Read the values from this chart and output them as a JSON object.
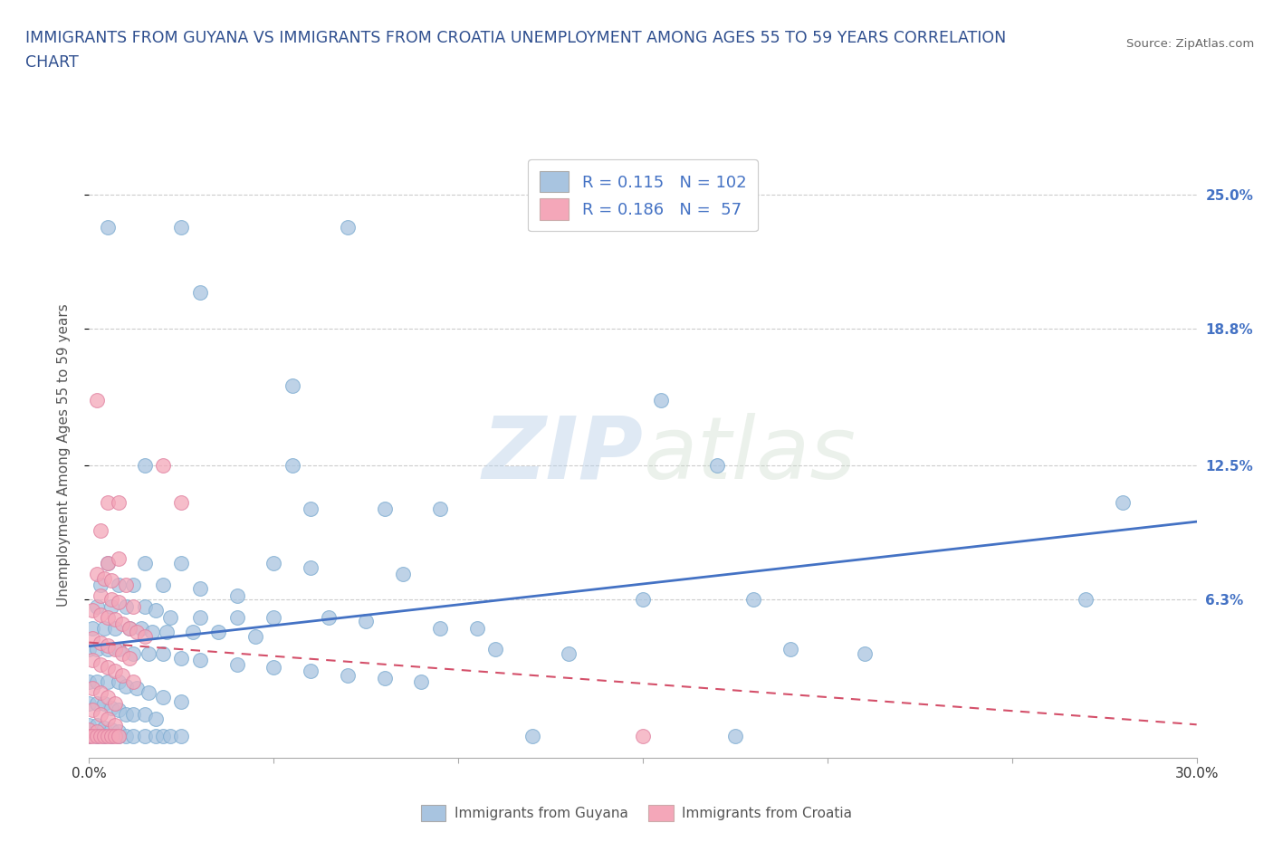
{
  "title_line1": "IMMIGRANTS FROM GUYANA VS IMMIGRANTS FROM CROATIA UNEMPLOYMENT AMONG AGES 55 TO 59 YEARS CORRELATION",
  "title_line2": "CHART",
  "source": "Source: ZipAtlas.com",
  "ylabel": "Unemployment Among Ages 55 to 59 years",
  "xlim": [
    0.0,
    0.3
  ],
  "ylim": [
    -0.01,
    0.27
  ],
  "ytick_labels_right": [
    "6.3%",
    "12.5%",
    "18.8%",
    "25.0%"
  ],
  "ytick_vals_right": [
    0.063,
    0.125,
    0.188,
    0.25
  ],
  "watermark": "ZIPatlas",
  "legend_R1": "0.115",
  "legend_N1": "102",
  "legend_R2": "0.186",
  "legend_N2": " 57",
  "guyana_color": "#a8c4e0",
  "croatia_color": "#f4a7b9",
  "guyana_line_color": "#4472c4",
  "croatia_line_color": "#d4506a",
  "guyana_scatter": [
    [
      0.005,
      0.235
    ],
    [
      0.025,
      0.235
    ],
    [
      0.07,
      0.235
    ],
    [
      0.03,
      0.205
    ],
    [
      0.055,
      0.162
    ],
    [
      0.155,
      0.155
    ],
    [
      0.015,
      0.125
    ],
    [
      0.055,
      0.125
    ],
    [
      0.06,
      0.105
    ],
    [
      0.08,
      0.105
    ],
    [
      0.095,
      0.105
    ],
    [
      0.005,
      0.08
    ],
    [
      0.015,
      0.08
    ],
    [
      0.025,
      0.08
    ],
    [
      0.05,
      0.08
    ],
    [
      0.06,
      0.078
    ],
    [
      0.085,
      0.075
    ],
    [
      0.003,
      0.07
    ],
    [
      0.008,
      0.07
    ],
    [
      0.012,
      0.07
    ],
    [
      0.02,
      0.07
    ],
    [
      0.03,
      0.068
    ],
    [
      0.04,
      0.065
    ],
    [
      0.002,
      0.06
    ],
    [
      0.006,
      0.06
    ],
    [
      0.01,
      0.06
    ],
    [
      0.015,
      0.06
    ],
    [
      0.018,
      0.058
    ],
    [
      0.022,
      0.055
    ],
    [
      0.03,
      0.055
    ],
    [
      0.04,
      0.055
    ],
    [
      0.05,
      0.055
    ],
    [
      0.065,
      0.055
    ],
    [
      0.075,
      0.053
    ],
    [
      0.001,
      0.05
    ],
    [
      0.004,
      0.05
    ],
    [
      0.007,
      0.05
    ],
    [
      0.011,
      0.05
    ],
    [
      0.014,
      0.05
    ],
    [
      0.017,
      0.048
    ],
    [
      0.021,
      0.048
    ],
    [
      0.028,
      0.048
    ],
    [
      0.035,
      0.048
    ],
    [
      0.045,
      0.046
    ],
    [
      0.0,
      0.04
    ],
    [
      0.002,
      0.04
    ],
    [
      0.005,
      0.04
    ],
    [
      0.008,
      0.04
    ],
    [
      0.012,
      0.038
    ],
    [
      0.016,
      0.038
    ],
    [
      0.02,
      0.038
    ],
    [
      0.025,
      0.036
    ],
    [
      0.03,
      0.035
    ],
    [
      0.04,
      0.033
    ],
    [
      0.05,
      0.032
    ],
    [
      0.06,
      0.03
    ],
    [
      0.07,
      0.028
    ],
    [
      0.08,
      0.027
    ],
    [
      0.09,
      0.025
    ],
    [
      0.0,
      0.025
    ],
    [
      0.002,
      0.025
    ],
    [
      0.005,
      0.025
    ],
    [
      0.008,
      0.025
    ],
    [
      0.01,
      0.023
    ],
    [
      0.013,
      0.022
    ],
    [
      0.016,
      0.02
    ],
    [
      0.02,
      0.018
    ],
    [
      0.025,
      0.016
    ],
    [
      0.0,
      0.015
    ],
    [
      0.002,
      0.015
    ],
    [
      0.004,
      0.015
    ],
    [
      0.006,
      0.013
    ],
    [
      0.008,
      0.012
    ],
    [
      0.01,
      0.01
    ],
    [
      0.012,
      0.01
    ],
    [
      0.015,
      0.01
    ],
    [
      0.018,
      0.008
    ],
    [
      0.0,
      0.005
    ],
    [
      0.002,
      0.005
    ],
    [
      0.004,
      0.004
    ],
    [
      0.006,
      0.003
    ],
    [
      0.008,
      0.002
    ],
    [
      0.0,
      0.0
    ],
    [
      0.002,
      0.0
    ],
    [
      0.004,
      0.0
    ],
    [
      0.006,
      0.0
    ],
    [
      0.008,
      0.0
    ],
    [
      0.01,
      0.0
    ],
    [
      0.012,
      0.0
    ],
    [
      0.015,
      0.0
    ],
    [
      0.018,
      0.0
    ],
    [
      0.02,
      0.0
    ],
    [
      0.022,
      0.0
    ],
    [
      0.025,
      0.0
    ],
    [
      0.12,
      0.0
    ],
    [
      0.175,
      0.0
    ],
    [
      0.28,
      0.108
    ],
    [
      0.27,
      0.063
    ],
    [
      0.17,
      0.125
    ],
    [
      0.15,
      0.063
    ],
    [
      0.18,
      0.063
    ],
    [
      0.11,
      0.04
    ],
    [
      0.13,
      0.038
    ],
    [
      0.095,
      0.05
    ],
    [
      0.105,
      0.05
    ],
    [
      0.19,
      0.04
    ],
    [
      0.21,
      0.038
    ]
  ],
  "croatia_scatter": [
    [
      0.002,
      0.155
    ],
    [
      0.005,
      0.108
    ],
    [
      0.008,
      0.108
    ],
    [
      0.003,
      0.095
    ],
    [
      0.005,
      0.08
    ],
    [
      0.008,
      0.082
    ],
    [
      0.002,
      0.075
    ],
    [
      0.004,
      0.073
    ],
    [
      0.006,
      0.072
    ],
    [
      0.01,
      0.07
    ],
    [
      0.003,
      0.065
    ],
    [
      0.006,
      0.063
    ],
    [
      0.008,
      0.062
    ],
    [
      0.012,
      0.06
    ],
    [
      0.001,
      0.058
    ],
    [
      0.003,
      0.056
    ],
    [
      0.005,
      0.055
    ],
    [
      0.007,
      0.054
    ],
    [
      0.009,
      0.052
    ],
    [
      0.011,
      0.05
    ],
    [
      0.013,
      0.048
    ],
    [
      0.015,
      0.046
    ],
    [
      0.001,
      0.045
    ],
    [
      0.003,
      0.043
    ],
    [
      0.005,
      0.042
    ],
    [
      0.007,
      0.04
    ],
    [
      0.009,
      0.038
    ],
    [
      0.011,
      0.036
    ],
    [
      0.001,
      0.035
    ],
    [
      0.003,
      0.033
    ],
    [
      0.005,
      0.032
    ],
    [
      0.007,
      0.03
    ],
    [
      0.009,
      0.028
    ],
    [
      0.012,
      0.025
    ],
    [
      0.001,
      0.022
    ],
    [
      0.003,
      0.02
    ],
    [
      0.005,
      0.018
    ],
    [
      0.007,
      0.015
    ],
    [
      0.001,
      0.012
    ],
    [
      0.003,
      0.01
    ],
    [
      0.005,
      0.008
    ],
    [
      0.007,
      0.005
    ],
    [
      0.0,
      0.003
    ],
    [
      0.002,
      0.002
    ],
    [
      0.0,
      0.0
    ],
    [
      0.001,
      0.0
    ],
    [
      0.002,
      0.0
    ],
    [
      0.003,
      0.0
    ],
    [
      0.004,
      0.0
    ],
    [
      0.005,
      0.0
    ],
    [
      0.006,
      0.0
    ],
    [
      0.007,
      0.0
    ],
    [
      0.008,
      0.0
    ],
    [
      0.15,
      0.0
    ],
    [
      0.02,
      0.125
    ],
    [
      0.025,
      0.108
    ]
  ]
}
